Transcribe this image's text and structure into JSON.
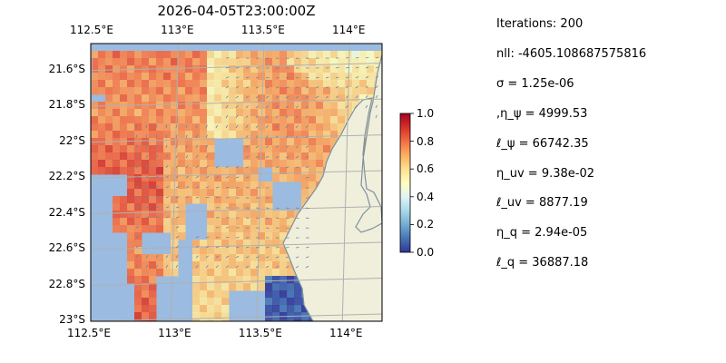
{
  "title": "2026-04-05T23:00:00Z",
  "map": {
    "type": "heatmap",
    "lon_range": [
      112.5,
      114.2
    ],
    "lat_range": [
      -23.0,
      -21.45
    ],
    "top_tick_labels": [
      {
        "lon": 112.5,
        "label": "112.5°E"
      },
      {
        "lon": 113.0,
        "label": "113°E"
      },
      {
        "lon": 113.5,
        "label": "113.5°E"
      },
      {
        "lon": 114.0,
        "label": "114°E"
      }
    ],
    "bottom_tick_labels": [
      {
        "lon": 112.5,
        "label": "112.5°E"
      },
      {
        "lon": 113.0,
        "label": "113°E"
      },
      {
        "lon": 113.5,
        "label": "113.5°E"
      },
      {
        "lon": 114.0,
        "label": "114°E"
      }
    ],
    "left_tick_labels": [
      {
        "lat": -21.6,
        "label": "21.6°S"
      },
      {
        "lat": -21.8,
        "label": "21.8°S"
      },
      {
        "lat": -22.0,
        "label": "22°S"
      },
      {
        "lat": -22.2,
        "label": "22.2°S"
      },
      {
        "lat": -22.4,
        "label": "22.4°S"
      },
      {
        "lat": -22.6,
        "label": "22.6°S"
      },
      {
        "lat": -22.8,
        "label": "22.8°S"
      },
      {
        "lat": -23.0,
        "label": "23°S"
      }
    ],
    "colors": {
      "ocean": "#9bbbe0",
      "land": "#efefdc",
      "coast": "#7f8f9f",
      "grid": "#b0b0b0",
      "vector": "#6a86a6"
    },
    "field_description_levels": [
      0.92,
      0.75,
      0.68,
      0.6,
      0.5,
      0.05
    ]
  },
  "colorbar": {
    "colormap": "RdYlBu_r",
    "range": [
      0.0,
      1.0
    ],
    "ticks": [
      "0.0",
      "0.2",
      "0.4",
      "0.6",
      "0.8",
      "1.0"
    ]
  },
  "stats": [
    "Iterations: 200",
    "nll: -4605.108687575816",
    "σ = 1.25e-06",
    ",η_ψ = 4999.53",
    "ℓ_ψ = 66742.35",
    "η_uv = 9.38e-02",
    "ℓ_uv = 8877.19",
    "η_q = 2.94e-05",
    "ℓ_q = 36887.18"
  ]
}
